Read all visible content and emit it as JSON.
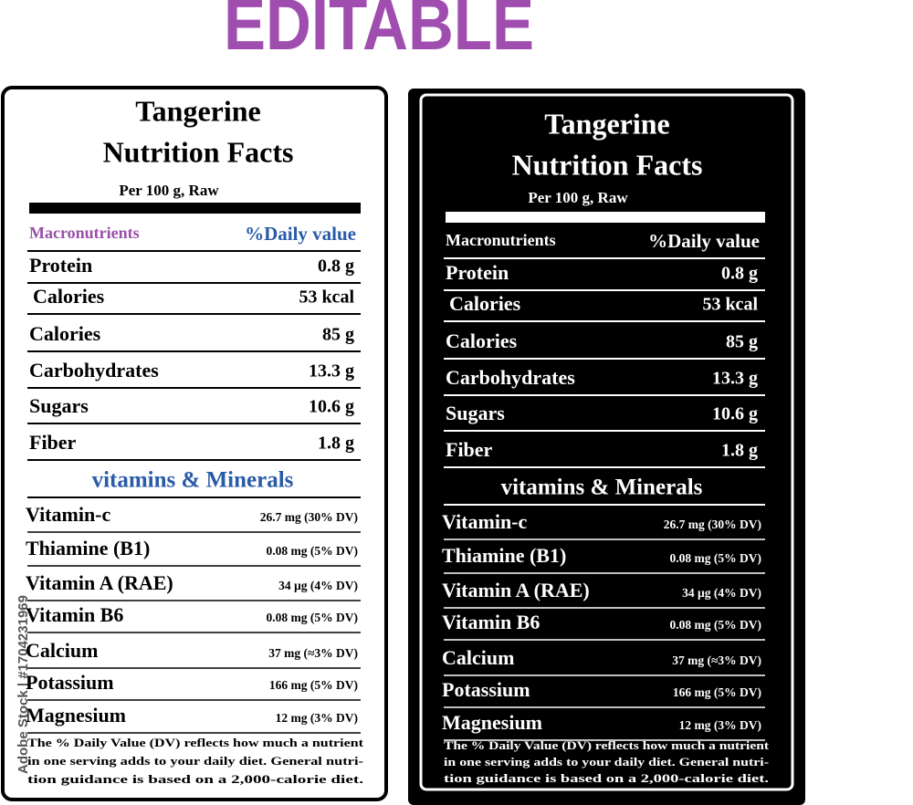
{
  "banner": "EDITABLE",
  "watermark": "Adobe Stock | #1704231969",
  "label": {
    "title_lines": [
      "Tangerine",
      "Nutrition Facts"
    ],
    "subtitle": "Per 100 g, Raw",
    "macro_header": {
      "name": "Macronutrients",
      "value": "%Daily value"
    },
    "macronutrients": [
      {
        "name": "Protein",
        "amount": "0.8 g"
      },
      {
        "name": "Calories",
        "amount": "53 kcal"
      },
      {
        "name": "Calories",
        "amount": "85 g"
      },
      {
        "name": "Carbohydrates",
        "amount": "13.3 g"
      },
      {
        "name": "Sugars",
        "amount": "10.6 g"
      },
      {
        "name": "Fiber",
        "amount": "1.8 g"
      }
    ],
    "vitamins_header": "vitamins & Minerals",
    "vitamins": [
      {
        "name": "Vitamin-c",
        "amount": "26.7 mg (30% DV)"
      },
      {
        "name": "Thiamine (B1)",
        "amount": "0.08 mg (5% DV)"
      },
      {
        "name": "Vitamin A (RAE)",
        "amount": "34 µg (4% DV)"
      },
      {
        "name": "Vitamin B6",
        "amount": "0.08 mg (5% DV)"
      },
      {
        "name": "Calcium",
        "amount": "37 mg (≈3% DV)"
      },
      {
        "name": "Potassium",
        "amount": "166 mg (5% DV)"
      },
      {
        "name": "Magnesium",
        "amount": "12 mg (3% DV)"
      }
    ],
    "footnote_lines": [
      "The % Daily Value (DV) reflects how much a nutrient",
      "in one serving adds to your daily diet. General nutri-",
      "tion guidance is based on a 2,000-calorie diet."
    ]
  }
}
